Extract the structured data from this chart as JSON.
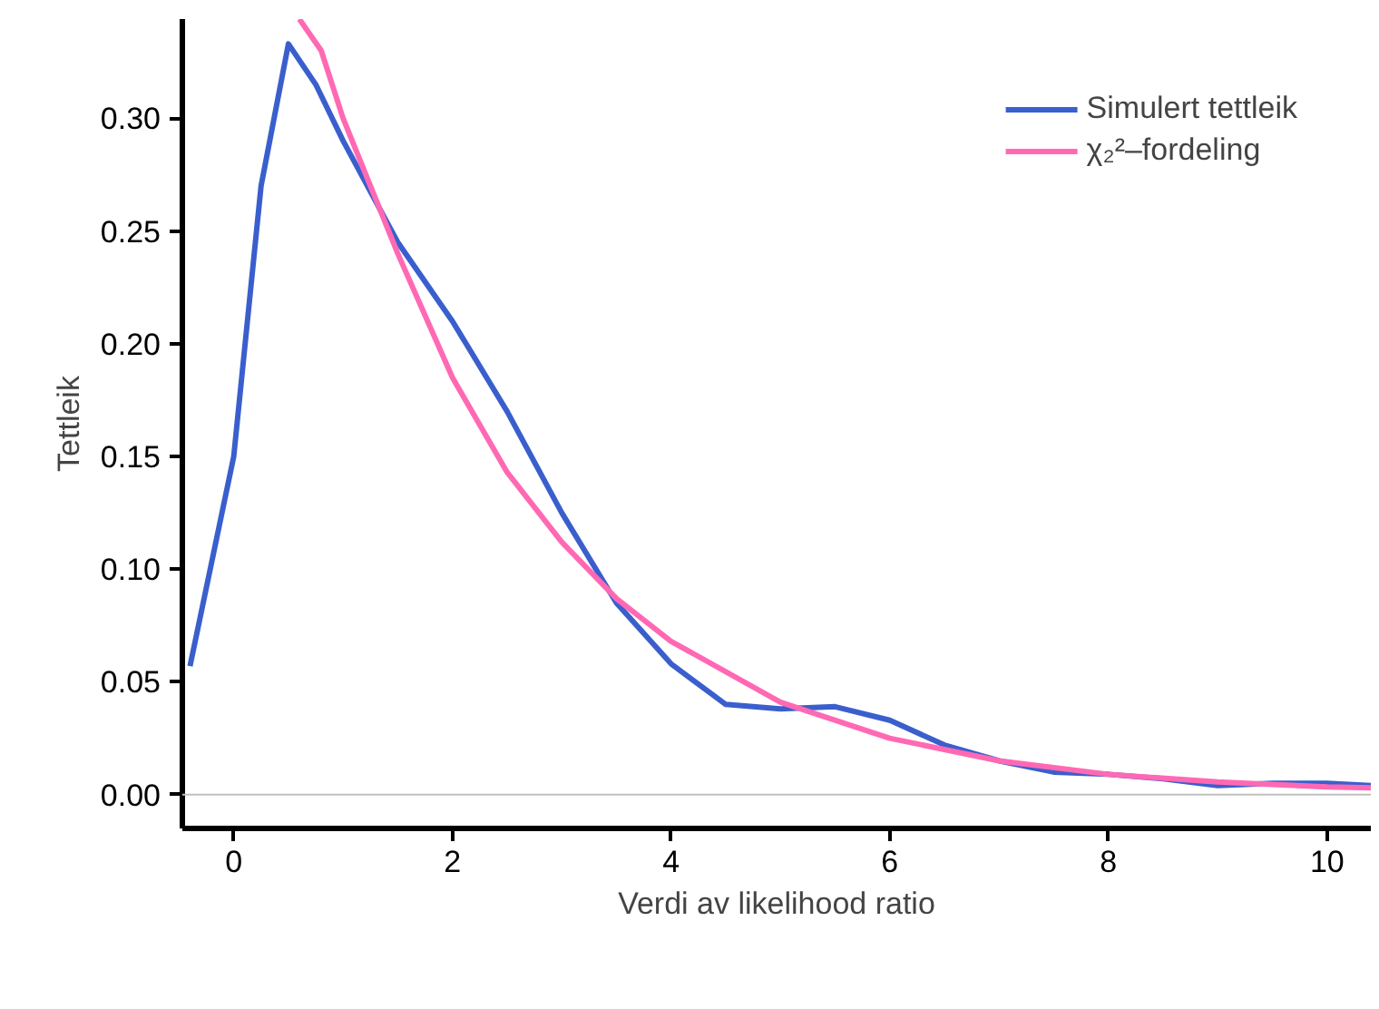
{
  "chart_data": {
    "type": "line",
    "xlabel": "Verdi av likelihood ratio",
    "ylabel": "Tettleik",
    "xlim": [
      -0.47,
      10.4
    ],
    "ylim": [
      -0.015,
      0.344
    ],
    "xticks": [
      0,
      2,
      4,
      6,
      8,
      10
    ],
    "yticks": [
      {
        "value": 0,
        "label": "0.00"
      },
      {
        "value": 0.05,
        "label": "0.05"
      },
      {
        "value": 0.1,
        "label": "0.10"
      },
      {
        "value": 0.15,
        "label": "0.15"
      },
      {
        "value": 0.2,
        "label": "0.20"
      },
      {
        "value": 0.25,
        "label": "0.25"
      },
      {
        "value": 0.3,
        "label": "0.30"
      }
    ],
    "grid": false,
    "legend": "top right",
    "line_style": "solid",
    "marker": "none",
    "ref_lines": [
      {
        "axis": "y",
        "value": 0,
        "color": "#c0c0c0"
      }
    ],
    "series": [
      {
        "name": "Simulert tettleik",
        "color": "#3a5fcd",
        "x": [
          -0.4,
          0,
          0.25,
          0.5,
          0.75,
          1.0,
          1.5,
          2,
          2.5,
          3,
          3.5,
          4,
          4.5,
          5,
          5.5,
          6,
          6.5,
          7,
          7.5,
          8,
          8.5,
          9,
          9.5,
          10,
          10.4
        ],
        "values": [
          0.057,
          0.15,
          0.27,
          0.333,
          0.315,
          0.29,
          0.245,
          0.21,
          0.17,
          0.125,
          0.085,
          0.058,
          0.04,
          0.038,
          0.039,
          0.033,
          0.022,
          0.015,
          0.01,
          0.009,
          0.007,
          0.004,
          0.005,
          0.005,
          0.004
        ]
      },
      {
        "name": "χ₂²–fordeling",
        "color": "#ff69b4",
        "x": [
          0.6,
          0.8,
          1.0,
          1.5,
          2,
          2.5,
          3,
          3.5,
          4,
          5,
          6,
          7,
          8,
          9,
          10,
          10.4
        ],
        "values": [
          0.344,
          0.33,
          0.3,
          0.24,
          0.185,
          0.143,
          0.112,
          0.087,
          0.068,
          0.041,
          0.025,
          0.015,
          0.009,
          0.0056,
          0.0034,
          0.003
        ]
      }
    ]
  }
}
